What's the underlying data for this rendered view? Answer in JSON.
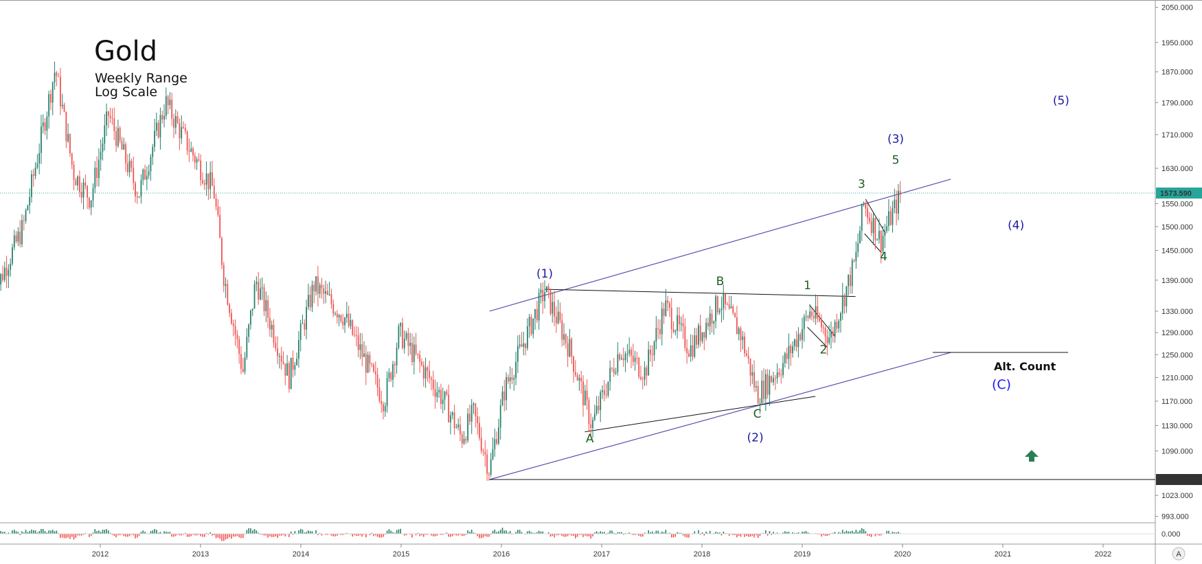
{
  "header": {
    "title": "Gold",
    "subtitle_1": "Weekly Range",
    "subtitle_2": "Log Scale"
  },
  "colors": {
    "up": "#26806b",
    "down": "#ef5350",
    "wave_blue": "#1a1aa0",
    "wave_green": "#1b5e20",
    "channel": "#5b4fb0",
    "last_price_bg": "#26a69a",
    "pivot_bg": "#333333",
    "arrow": "#2e7d52"
  },
  "chart_data": {
    "type": "candlestick",
    "title": "Gold",
    "scale": "log",
    "timeframe": "Weekly",
    "x_ticks": [
      "2012",
      "2013",
      "2014",
      "2015",
      "2016",
      "2017",
      "2018",
      "2019",
      "2020",
      "2021",
      "2022"
    ],
    "y_ticks": [
      "2050.000",
      "1950.000",
      "1870.000",
      "1790.000",
      "1710.000",
      "1630.000",
      "1550.000",
      "1500.000",
      "1450.000",
      "1390.000",
      "1330.000",
      "1290.000",
      "1250.000",
      "1210.000",
      "1170.000",
      "1130.000",
      "1090.000",
      "1023.000",
      "993.000"
    ],
    "oscillator_tick": "0.000",
    "last_price": "1573.590",
    "pivot_low": "1046.459",
    "approx_closes": [
      {
        "date": 2011.0,
        "price": 1360
      },
      {
        "date": 2011.3,
        "price": 1500
      },
      {
        "date": 2011.62,
        "price": 1880
      },
      {
        "date": 2011.8,
        "price": 1620
      },
      {
        "date": 2011.97,
        "price": 1560
      },
      {
        "date": 2012.15,
        "price": 1760
      },
      {
        "date": 2012.45,
        "price": 1570
      },
      {
        "date": 2012.72,
        "price": 1790
      },
      {
        "date": 2012.95,
        "price": 1680
      },
      {
        "date": 2013.2,
        "price": 1580
      },
      {
        "date": 2013.3,
        "price": 1400
      },
      {
        "date": 2013.49,
        "price": 1220
      },
      {
        "date": 2013.62,
        "price": 1390
      },
      {
        "date": 2013.95,
        "price": 1210
      },
      {
        "date": 2014.2,
        "price": 1380
      },
      {
        "date": 2014.5,
        "price": 1320
      },
      {
        "date": 2014.9,
        "price": 1170
      },
      {
        "date": 2015.05,
        "price": 1290
      },
      {
        "date": 2015.5,
        "price": 1170
      },
      {
        "date": 2015.67,
        "price": 1110
      },
      {
        "date": 2015.79,
        "price": 1150
      },
      {
        "date": 2015.95,
        "price": 1060
      },
      {
        "date": 2016.1,
        "price": 1190
      },
      {
        "date": 2016.5,
        "price": 1370
      },
      {
        "date": 2016.75,
        "price": 1260
      },
      {
        "date": 2016.97,
        "price": 1130
      },
      {
        "date": 2017.25,
        "price": 1260
      },
      {
        "date": 2017.5,
        "price": 1220
      },
      {
        "date": 2017.7,
        "price": 1340
      },
      {
        "date": 2017.95,
        "price": 1260
      },
      {
        "date": 2018.25,
        "price": 1350
      },
      {
        "date": 2018.45,
        "price": 1290
      },
      {
        "date": 2018.62,
        "price": 1180
      },
      {
        "date": 2018.9,
        "price": 1240
      },
      {
        "date": 2019.15,
        "price": 1330
      },
      {
        "date": 2019.35,
        "price": 1280
      },
      {
        "date": 2019.6,
        "price": 1430
      },
      {
        "date": 2019.68,
        "price": 1550
      },
      {
        "date": 2019.85,
        "price": 1470
      },
      {
        "date": 2019.95,
        "price": 1520
      },
      {
        "date": 2020.05,
        "price": 1570
      }
    ],
    "wave_labels": [
      {
        "text": "(1)",
        "date": 2016.5,
        "price": 1390,
        "color": "wave_blue"
      },
      {
        "text": "(2)",
        "date": 2018.6,
        "price": 1120,
        "color": "wave_blue"
      },
      {
        "text": "(3)",
        "date": 2200,
        "price": 1700,
        "color": "wave_blue"
      },
      {
        "text": "(4)",
        "date": 2021.2,
        "price": 1500,
        "color": "wave_blue"
      },
      {
        "text": "(5)",
        "date": 2021.65,
        "price": 1790,
        "color": "wave_blue"
      },
      {
        "text": "A",
        "date": 2016.95,
        "price": 1110,
        "color": "wave_green"
      },
      {
        "text": "B",
        "date": 2018.25,
        "price": 1385,
        "color": "wave_green"
      },
      {
        "text": "C",
        "date": 2018.62,
        "price": 1145,
        "color": "wave_green"
      },
      {
        "text": "1",
        "date": 2019.12,
        "price": 1375,
        "color": "wave_green"
      },
      {
        "text": "2",
        "date": 2019.3,
        "price": 1255,
        "color": "wave_green"
      },
      {
        "text": "3",
        "date": 2019.68,
        "price": 1585,
        "color": "wave_green"
      },
      {
        "text": "4",
        "date": 2019.87,
        "price": 1430,
        "color": "wave_green"
      },
      {
        "text": "5",
        "date": 2020.02,
        "price": 1630,
        "color": "wave_green"
      }
    ],
    "alt_count": {
      "label": "Alt. Count",
      "wave": "(C)"
    }
  },
  "footer": {
    "auto_scale": "A"
  }
}
